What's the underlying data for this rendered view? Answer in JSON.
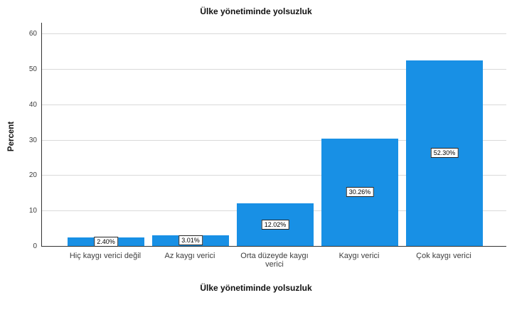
{
  "chart_data": {
    "type": "bar",
    "title": "Ülke yönetiminde yolsuzluk",
    "xlabel": "Ülke yönetiminde yolsuzluk",
    "ylabel": "Percent",
    "categories": [
      "Hiç kaygı verici değil",
      "Az kaygı verici",
      "Orta düzeyde kaygı verici",
      "Kaygı verici",
      "Çok kaygı verici"
    ],
    "values": [
      2.4,
      3.01,
      12.02,
      30.26,
      52.3
    ],
    "bar_labels": [
      "2.40%",
      "3.01%",
      "12.02%",
      "30.26%",
      "52.30%"
    ],
    "y_ticks": [
      0,
      10,
      20,
      30,
      40,
      50,
      60
    ],
    "y_tick_labels": [
      "0",
      "10",
      "20",
      "30",
      "40",
      "50",
      "60"
    ],
    "ylim": [
      0,
      60
    ],
    "grid": true,
    "legend": "none",
    "bar_color": "#1890e5",
    "gridline_color": "#d9d9d9",
    "axis_color": "#333333"
  }
}
